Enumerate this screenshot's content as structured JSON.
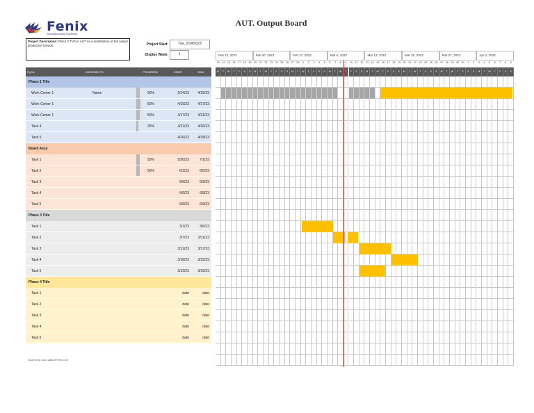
{
  "brand": {
    "name": "Fenix",
    "tagline": "Manufacturing Solutions"
  },
  "title": "AUT. Output Board",
  "description": {
    "label": "Project Description:",
    "text": " Place 2 TV's in AUT as a substitution of the output production boards."
  },
  "project_start": {
    "label": "Project Start:",
    "value": "Tue, 2/14/2023"
  },
  "display_week": {
    "label": "Display Week:",
    "value": "1"
  },
  "weeks": [
    "Feb 13, 2023",
    "Feb 20, 2023",
    "Feb 27, 2023",
    "Mar 6, 2023",
    "Mar 13, 2023",
    "Mar 20, 2023",
    "Mar 27, 2023",
    "Apr 3, 2023"
  ],
  "day_numbers": [
    "13",
    "14",
    "15",
    "16",
    "17",
    "18",
    "19",
    "20",
    "21",
    "22",
    "23",
    "24",
    "25",
    "26",
    "27",
    "28",
    "1",
    "2",
    "3",
    "4",
    "5",
    "6",
    "7",
    "8",
    "9",
    "10",
    "11",
    "12",
    "13",
    "14",
    "15",
    "16",
    "17",
    "18",
    "19",
    "20",
    "21",
    "22",
    "23",
    "24",
    "25",
    "26",
    "27",
    "28",
    "29",
    "30",
    "31",
    "1",
    "2",
    "3",
    "4",
    "5",
    "6",
    "7",
    "8",
    "9"
  ],
  "day_letters": [
    "M",
    "T",
    "W",
    "T",
    "F",
    "S",
    "S",
    "M",
    "T",
    "W",
    "T",
    "F",
    "S",
    "S",
    "M",
    "T",
    "W",
    "T",
    "F",
    "S",
    "S",
    "M",
    "T",
    "W",
    "T",
    "F",
    "S",
    "S",
    "M",
    "T",
    "W",
    "T",
    "F",
    "S",
    "S",
    "M",
    "T",
    "W",
    "T",
    "F",
    "S",
    "S",
    "M",
    "T",
    "W",
    "T",
    "F",
    "S",
    "S",
    "M",
    "T",
    "W",
    "T",
    "F",
    "S",
    "S"
  ],
  "columns": {
    "task": "Pg Tal",
    "assigned": "ASSIGNED TO",
    "progress": "PROGRESS",
    "start": "START",
    "end": "END"
  },
  "colors": {
    "phase1": "#dce6f4",
    "phase1_head": "#b4c6e7",
    "phase2": "#fce4d6",
    "phase2_head": "#f8cbad",
    "phase3": "#ededed",
    "phase3_head": "#d9d9d9",
    "phase4": "#fff2cc",
    "phase4_head": "#ffe699",
    "gantt_gold": "#ffc000",
    "gantt_grey": "#a6a6a6",
    "today": "#c0392b"
  },
  "phases": [
    {
      "title": "Phase 1 Title",
      "color_key": "phase1",
      "tasks": [
        {
          "name": "Work Center 1",
          "assigned": "Name",
          "progress": "50%",
          "progress_value": 0.5,
          "start": "2/14/23",
          "end": "4/15/23"
        },
        {
          "name": "Work Center 1",
          "assigned": "",
          "progress": "60%",
          "progress_value": 0.6,
          "start": "4/15/23",
          "end": "4/17/23"
        },
        {
          "name": "Work Center 1",
          "assigned": "",
          "progress": "50%",
          "progress_value": 0.5,
          "start": "4/17/23",
          "end": "4/21/23"
        },
        {
          "name": "Task 4",
          "assigned": "",
          "progress": "25%",
          "progress_value": 0.25,
          "start": "4/21/23",
          "end": "4/26/23"
        },
        {
          "name": "Task 5",
          "assigned": "",
          "progress": "",
          "progress_value": 0,
          "start": "4/16/23",
          "end": "4/18/23"
        }
      ]
    },
    {
      "title": "Board Assy",
      "color_key": "phase2",
      "tasks": [
        {
          "name": "Task 1",
          "assigned": "",
          "progress": "50%",
          "progress_value": 0.5,
          "start": "5/30/23",
          "end": "7/1/23"
        },
        {
          "name": "Task 2",
          "assigned": "",
          "progress": "50%",
          "progress_value": 0.5,
          "start": "6/1/23",
          "end": "6/6/23"
        },
        {
          "name": "Task 3",
          "assigned": "",
          "progress": "",
          "progress_value": 0,
          "start": "6/6/23",
          "end": "6/9/23"
        },
        {
          "name": "Task 4",
          "assigned": "",
          "progress": "",
          "progress_value": 0,
          "start": "6/6/23",
          "end": "6/8/23"
        },
        {
          "name": "Task 5",
          "assigned": "",
          "progress": "",
          "progress_value": 0,
          "start": "6/6/23",
          "end": "6/9/23"
        }
      ]
    },
    {
      "title": "Phase 3 Title",
      "color_key": "phase3",
      "tasks": [
        {
          "name": "Task 1",
          "assigned": "",
          "progress": "",
          "progress_value": 0,
          "start": "3/1/23",
          "end": "3/6/23"
        },
        {
          "name": "Task 2",
          "assigned": "",
          "progress": "",
          "progress_value": 0,
          "start": "3/7/23",
          "end": "3/11/23"
        },
        {
          "name": "Task 3",
          "assigned": "",
          "progress": "",
          "progress_value": 0,
          "start": "3/12/23",
          "end": "3/17/23"
        },
        {
          "name": "Task 4",
          "assigned": "",
          "progress": "",
          "progress_value": 0,
          "start": "3/18/23",
          "end": "3/22/23"
        },
        {
          "name": "Task 5",
          "assigned": "",
          "progress": "",
          "progress_value": 0,
          "start": "3/12/23",
          "end": "3/16/23"
        }
      ]
    },
    {
      "title": "Phase 4 Title",
      "color_key": "phase4",
      "tasks": [
        {
          "name": "Task 1",
          "assigned": "",
          "progress": "",
          "progress_value": 0,
          "start": "date",
          "end": "date"
        },
        {
          "name": "Task 2",
          "assigned": "",
          "progress": "",
          "progress_value": 0,
          "start": "date",
          "end": "date"
        },
        {
          "name": "Task 3",
          "assigned": "",
          "progress": "",
          "progress_value": 0,
          "start": "date",
          "end": "date"
        },
        {
          "name": "Task 4",
          "assigned": "",
          "progress": "",
          "progress_value": 0,
          "start": "date",
          "end": "date"
        },
        {
          "name": "Task 5",
          "assigned": "",
          "progress": "",
          "progress_value": 0,
          "start": "date",
          "end": "date"
        }
      ]
    }
  ],
  "insert_note": "Insert new rows ABOVE this one",
  "today_marker_date": "Mar 8, 2023"
}
